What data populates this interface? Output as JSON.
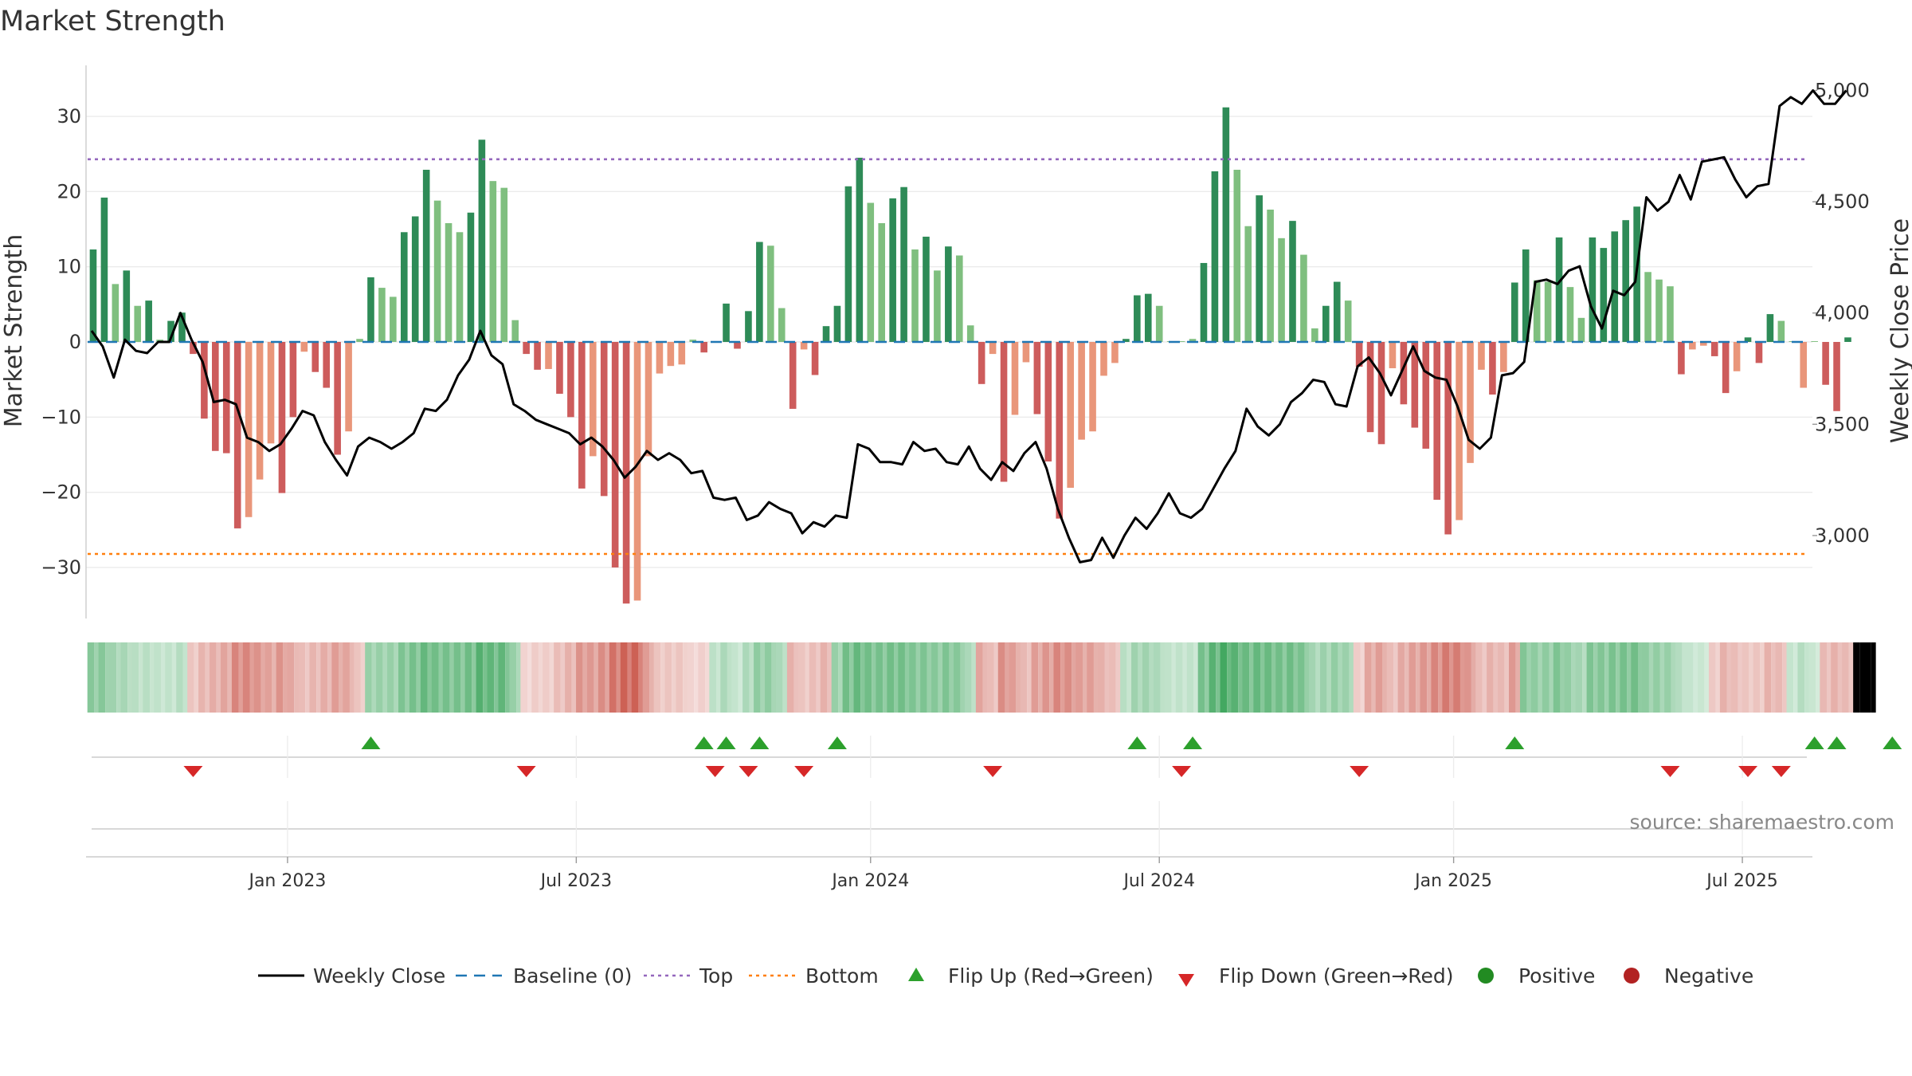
{
  "title": "Market Strength",
  "source": "source: sharemaestro.com",
  "colors": {
    "strong_green": "#2e8b57",
    "light_green": "#7fbf7f",
    "strong_red": "#cd5c5c",
    "light_red": "#e9967a",
    "price_line": "#000000",
    "baseline": "#1f77b4",
    "top": "#9467bd",
    "bottom": "#ff7f0e",
    "flip_up": "#2ca02c",
    "flip_down": "#d62728",
    "positive": "#228b22",
    "negative": "#b22222"
  },
  "chart_data": {
    "type": "bar",
    "title": "Market Strength",
    "ylabel": "Market Strength",
    "y2label": "Weekly Close Price",
    "ylim": [
      -37,
      37
    ],
    "y2lim": [
      2620,
      5120
    ],
    "yticks": [
      "30",
      "20",
      "10",
      "0",
      "−10",
      "−20",
      "−30"
    ],
    "yticks_values": [
      30,
      20,
      10,
      0,
      -10,
      -20,
      -30
    ],
    "y2ticks": [
      "5,000",
      "4,500",
      "4,000",
      "3,500",
      "3,000"
    ],
    "y2ticks_values": [
      5000,
      4500,
      4000,
      3500,
      3000
    ],
    "xticks": [
      "Jan 2023",
      "Jul 2023",
      "Jan 2024",
      "Jul 2024",
      "Jan 2025",
      "Jul 2025"
    ],
    "xticks_week": [
      18,
      44,
      70.5,
      96.5,
      123,
      149
    ],
    "top_level": 24.3,
    "bottom_level": -28.2,
    "baseline_level": 0,
    "strength": [
      12.3,
      19.2,
      7.7,
      9.5,
      4.8,
      5.5,
      0.3,
      2.8,
      3.9,
      -1.6,
      -10.2,
      -14.5,
      -14.8,
      -24.8,
      -23.3,
      -18.3,
      -13.5,
      -20.1,
      -10.0,
      -1.3,
      -4.0,
      -6.1,
      -15.0,
      -11.9,
      0.4,
      8.6,
      7.2,
      6.0,
      14.6,
      16.7,
      22.9,
      18.8,
      15.8,
      14.6,
      17.2,
      26.9,
      21.4,
      20.5,
      2.9,
      -1.6,
      -3.7,
      -3.6,
      -6.9,
      -10.0,
      -19.5,
      -15.2,
      -20.5,
      -30.0,
      -34.8,
      -34.4,
      -15.2,
      -4.2,
      -3.2,
      -3.0,
      0.3,
      -1.4,
      0.1,
      5.1,
      -0.9,
      4.1,
      13.3,
      12.8,
      4.5,
      -8.9,
      -1.0,
      -4.4,
      2.1,
      4.8,
      20.7,
      24.5,
      18.5,
      15.8,
      19.1,
      20.6,
      12.3,
      14.0,
      9.5,
      12.7,
      11.5,
      2.2,
      -5.6,
      -1.6,
      -18.6,
      -9.7,
      -2.7,
      -9.6,
      -15.9,
      -23.5,
      -19.4,
      -13.0,
      -11.9,
      -4.5,
      -2.8,
      0.4,
      6.2,
      6.4,
      4.8,
      0.1,
      0.1,
      0.4,
      10.5,
      22.7,
      31.2,
      22.9,
      15.4,
      19.5,
      17.6,
      13.8,
      16.1,
      11.6,
      1.8,
      4.8,
      8.0,
      5.5,
      -3.3,
      -12.0,
      -13.6,
      -3.5,
      -8.3,
      -11.4,
      -14.2,
      -21.0,
      -25.6,
      -23.7,
      -16.1,
      -3.7,
      -7.0,
      -4.0,
      7.9,
      12.3,
      8.2,
      8.0,
      13.9,
      7.3,
      3.2,
      13.9,
      12.5,
      14.7,
      16.2,
      18.0,
      9.3,
      8.3,
      7.4,
      -4.3,
      -1.0,
      -0.5,
      -1.9,
      -6.8,
      -3.9,
      0.6,
      -2.8,
      3.7,
      2.8,
      0.1,
      -6.1,
      0.1,
      -5.7,
      -9.2,
      0.6
    ],
    "strength_shade": [
      1,
      1,
      0,
      1,
      0,
      1,
      0,
      1,
      1,
      1,
      1,
      1,
      1,
      1,
      0,
      0,
      0,
      1,
      1,
      0,
      1,
      1,
      1,
      0,
      0,
      1,
      0,
      0,
      1,
      1,
      1,
      0,
      0,
      0,
      1,
      1,
      0,
      0,
      0,
      1,
      1,
      0,
      1,
      1,
      1,
      0,
      1,
      1,
      1,
      0,
      0,
      0,
      0,
      0,
      0,
      1,
      0,
      1,
      1,
      1,
      1,
      0,
      0,
      1,
      0,
      1,
      1,
      1,
      1,
      1,
      0,
      0,
      1,
      1,
      0,
      1,
      0,
      1,
      0,
      0,
      1,
      0,
      1,
      0,
      0,
      1,
      1,
      1,
      0,
      0,
      0,
      0,
      0,
      1,
      1,
      1,
      0,
      0,
      0,
      0,
      1,
      1,
      1,
      0,
      0,
      1,
      0,
      0,
      1,
      0,
      0,
      1,
      1,
      0,
      1,
      1,
      1,
      0,
      1,
      1,
      1,
      1,
      1,
      0,
      0,
      0,
      1,
      0,
      1,
      1,
      0,
      0,
      1,
      0,
      0,
      1,
      1,
      1,
      1,
      1,
      0,
      0,
      0,
      1,
      0,
      0,
      1,
      1,
      0,
      1,
      1,
      1,
      0,
      0,
      0,
      0,
      1,
      1,
      1,
      1
    ],
    "weekly_close": [
      3920,
      3850,
      3710,
      3880,
      3830,
      3820,
      3870,
      3870,
      4000,
      3880,
      3780,
      3600,
      3610,
      3590,
      3440,
      3420,
      3380,
      3410,
      3480,
      3560,
      3540,
      3420,
      3340,
      3270,
      3400,
      3440,
      3420,
      3390,
      3420,
      3460,
      3570,
      3560,
      3610,
      3720,
      3790,
      3920,
      3810,
      3770,
      3590,
      3560,
      3520,
      3500,
      3480,
      3460,
      3410,
      3440,
      3400,
      3340,
      3260,
      3310,
      3380,
      3340,
      3370,
      3340,
      3280,
      3290,
      3170,
      3160,
      3170,
      3070,
      3090,
      3150,
      3120,
      3100,
      3010,
      3060,
      3040,
      3090,
      3080,
      3410,
      3390,
      3330,
      3330,
      3320,
      3420,
      3380,
      3390,
      3330,
      3320,
      3400,
      3300,
      3250,
      3330,
      3290,
      3370,
      3420,
      3300,
      3120,
      2990,
      2880,
      2890,
      2990,
      2900,
      3000,
      3080,
      3030,
      3100,
      3190,
      3100,
      3080,
      3120,
      3210,
      3300,
      3380,
      3570,
      3490,
      3450,
      3500,
      3600,
      3640,
      3700,
      3690,
      3590,
      3580,
      3760,
      3800,
      3730,
      3630,
      3740,
      3850,
      3740,
      3710,
      3700,
      3580,
      3430,
      3390,
      3440,
      3720,
      3730,
      3780,
      4140,
      4150,
      4130,
      4190,
      4210,
      4030,
      3930,
      4100,
      4080,
      4140,
      4520,
      4460,
      4500,
      4620,
      4510,
      4680,
      4690,
      4700,
      4600,
      4520,
      4570,
      4580,
      4930,
      4970,
      4940,
      5000,
      4940,
      4940,
      5000
    ],
    "state_strip": [
      0,
      0,
      0,
      0,
      0,
      0,
      0,
      0,
      0,
      1,
      1,
      1,
      1,
      1,
      1,
      1,
      1,
      1,
      1,
      1,
      1,
      1,
      1,
      1,
      1,
      0,
      0,
      0,
      0,
      0,
      0,
      0,
      0,
      0,
      0,
      0,
      0,
      0,
      0,
      1,
      1,
      1,
      1,
      1,
      1,
      1,
      1,
      1,
      1,
      1,
      1,
      1,
      1,
      1,
      1,
      1,
      0,
      0,
      0,
      0,
      0,
      0,
      0,
      1,
      1,
      1,
      1,
      0,
      0,
      0,
      0,
      0,
      0,
      0,
      0,
      0,
      0,
      0,
      0,
      0,
      1,
      1,
      1,
      1,
      1,
      1,
      1,
      1,
      1,
      1,
      1,
      1,
      1,
      0,
      0,
      0,
      0,
      0,
      0,
      0,
      0,
      0,
      0,
      0,
      0,
      0,
      0,
      0,
      0,
      0,
      0,
      0,
      0,
      0,
      1,
      1,
      1,
      1,
      1,
      1,
      1,
      1,
      1,
      1,
      1,
      1,
      1,
      1,
      1,
      0,
      0,
      0,
      0,
      0,
      0,
      0,
      0,
      0,
      0,
      0,
      0,
      0,
      0,
      0,
      0,
      0,
      1,
      1,
      1,
      1,
      1,
      1,
      1,
      0,
      0,
      0,
      1,
      1,
      1,
      1,
      0
    ],
    "state_intensity": [
      0.58,
      0.58,
      0.46,
      0.42,
      0.34,
      0.34,
      0.3,
      0.3,
      0.36,
      0.3,
      0.38,
      0.42,
      0.46,
      0.62,
      0.62,
      0.55,
      0.48,
      0.55,
      0.45,
      0.34,
      0.38,
      0.42,
      0.5,
      0.46,
      0.3,
      0.5,
      0.5,
      0.5,
      0.62,
      0.66,
      0.74,
      0.68,
      0.66,
      0.66,
      0.7,
      0.82,
      0.76,
      0.76,
      0.5,
      0.22,
      0.26,
      0.26,
      0.34,
      0.4,
      0.55,
      0.52,
      0.58,
      0.72,
      0.8,
      0.8,
      0.5,
      0.3,
      0.3,
      0.3,
      0.22,
      0.24,
      0.32,
      0.4,
      0.28,
      0.4,
      0.54,
      0.54,
      0.4,
      0.4,
      0.3,
      0.34,
      0.4,
      0.5,
      0.68,
      0.74,
      0.68,
      0.66,
      0.68,
      0.68,
      0.62,
      0.62,
      0.58,
      0.62,
      0.58,
      0.4,
      0.46,
      0.34,
      0.58,
      0.5,
      0.36,
      0.5,
      0.54,
      0.62,
      0.58,
      0.5,
      0.5,
      0.4,
      0.34,
      0.34,
      0.46,
      0.46,
      0.4,
      0.3,
      0.3,
      0.3,
      0.66,
      0.8,
      0.9,
      0.8,
      0.72,
      0.74,
      0.72,
      0.68,
      0.7,
      0.64,
      0.44,
      0.48,
      0.52,
      0.48,
      0.26,
      0.46,
      0.5,
      0.34,
      0.44,
      0.5,
      0.54,
      0.62,
      0.68,
      0.66,
      0.54,
      0.34,
      0.4,
      0.36,
      0.52,
      0.6,
      0.54,
      0.54,
      0.62,
      0.52,
      0.44,
      0.62,
      0.6,
      0.64,
      0.66,
      0.68,
      0.54,
      0.52,
      0.5,
      0.36,
      0.28,
      0.26,
      0.28,
      0.4,
      0.34,
      0.3,
      0.3,
      0.4,
      0.36,
      0.28,
      0.36,
      0.26,
      0.36,
      0.4,
      0.36
    ],
    "flip_up_weeks": [
      25,
      55,
      57,
      60,
      67,
      94,
      99,
      128,
      155,
      157,
      162
    ],
    "flip_down_weeks": [
      9,
      39,
      56,
      59,
      64,
      81,
      98,
      114,
      142,
      149,
      152
    ],
    "legend": [
      "Weekly Close",
      "Baseline (0)",
      "Top",
      "Bottom",
      "Flip Up (Red→Green)",
      "Flip Down (Green→Red)",
      "Positive",
      "Negative"
    ]
  }
}
